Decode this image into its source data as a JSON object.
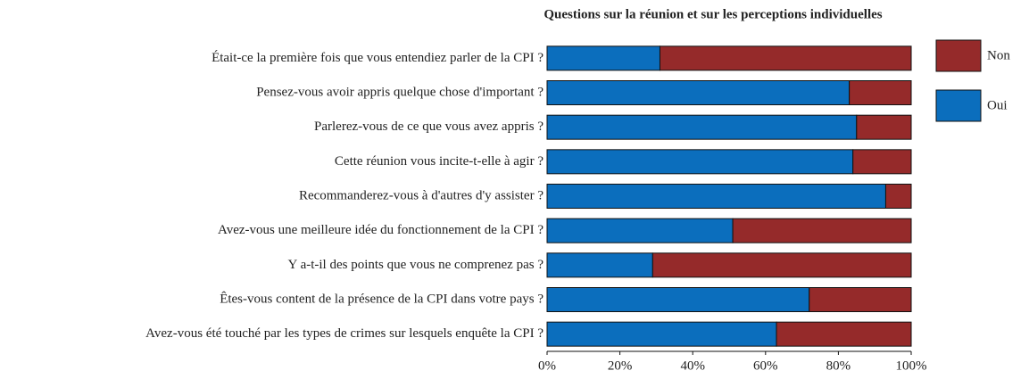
{
  "chart_data": {
    "type": "bar",
    "orientation": "horizontal",
    "stacked": true,
    "title": "Questions sur la réunion et sur les perceptions individuelles",
    "categories": [
      "Était-ce la première fois que vous entendiez parler de la CPI ?",
      "Pensez-vous avoir appris quelque chose d'important ?",
      "Parlerez-vous de ce que vous avez appris ?",
      "Cette réunion vous incite-t-elle à agir ?",
      "Recommanderez-vous à d'autres d'y assister ?",
      "Avez-vous une meilleure idée du fonctionnement de la CPI ?",
      "Y a-t-il des points que vous ne comprenez pas ?",
      "Êtes-vous content de la présence de la CPI dans votre pays ?",
      "Avez-vous été touché par les types de crimes sur lesquels enquête la CPI ?"
    ],
    "series": [
      {
        "name": "Oui",
        "color": "#0b6ebd",
        "values": [
          31,
          83,
          85,
          84,
          93,
          51,
          29,
          72,
          63
        ]
      },
      {
        "name": "Non",
        "color": "#952a2a",
        "values": [
          69,
          17,
          15,
          16,
          7,
          49,
          71,
          28,
          37
        ]
      }
    ],
    "xlim": [
      0,
      100
    ],
    "xticks": [
      {
        "value": 0,
        "label": "0%"
      },
      {
        "value": 20,
        "label": "20%"
      },
      {
        "value": 40,
        "label": "40%"
      },
      {
        "value": 60,
        "label": "60%"
      },
      {
        "value": 80,
        "label": "80%"
      },
      {
        "value": 100,
        "label": "100%"
      }
    ],
    "legend": "right"
  }
}
